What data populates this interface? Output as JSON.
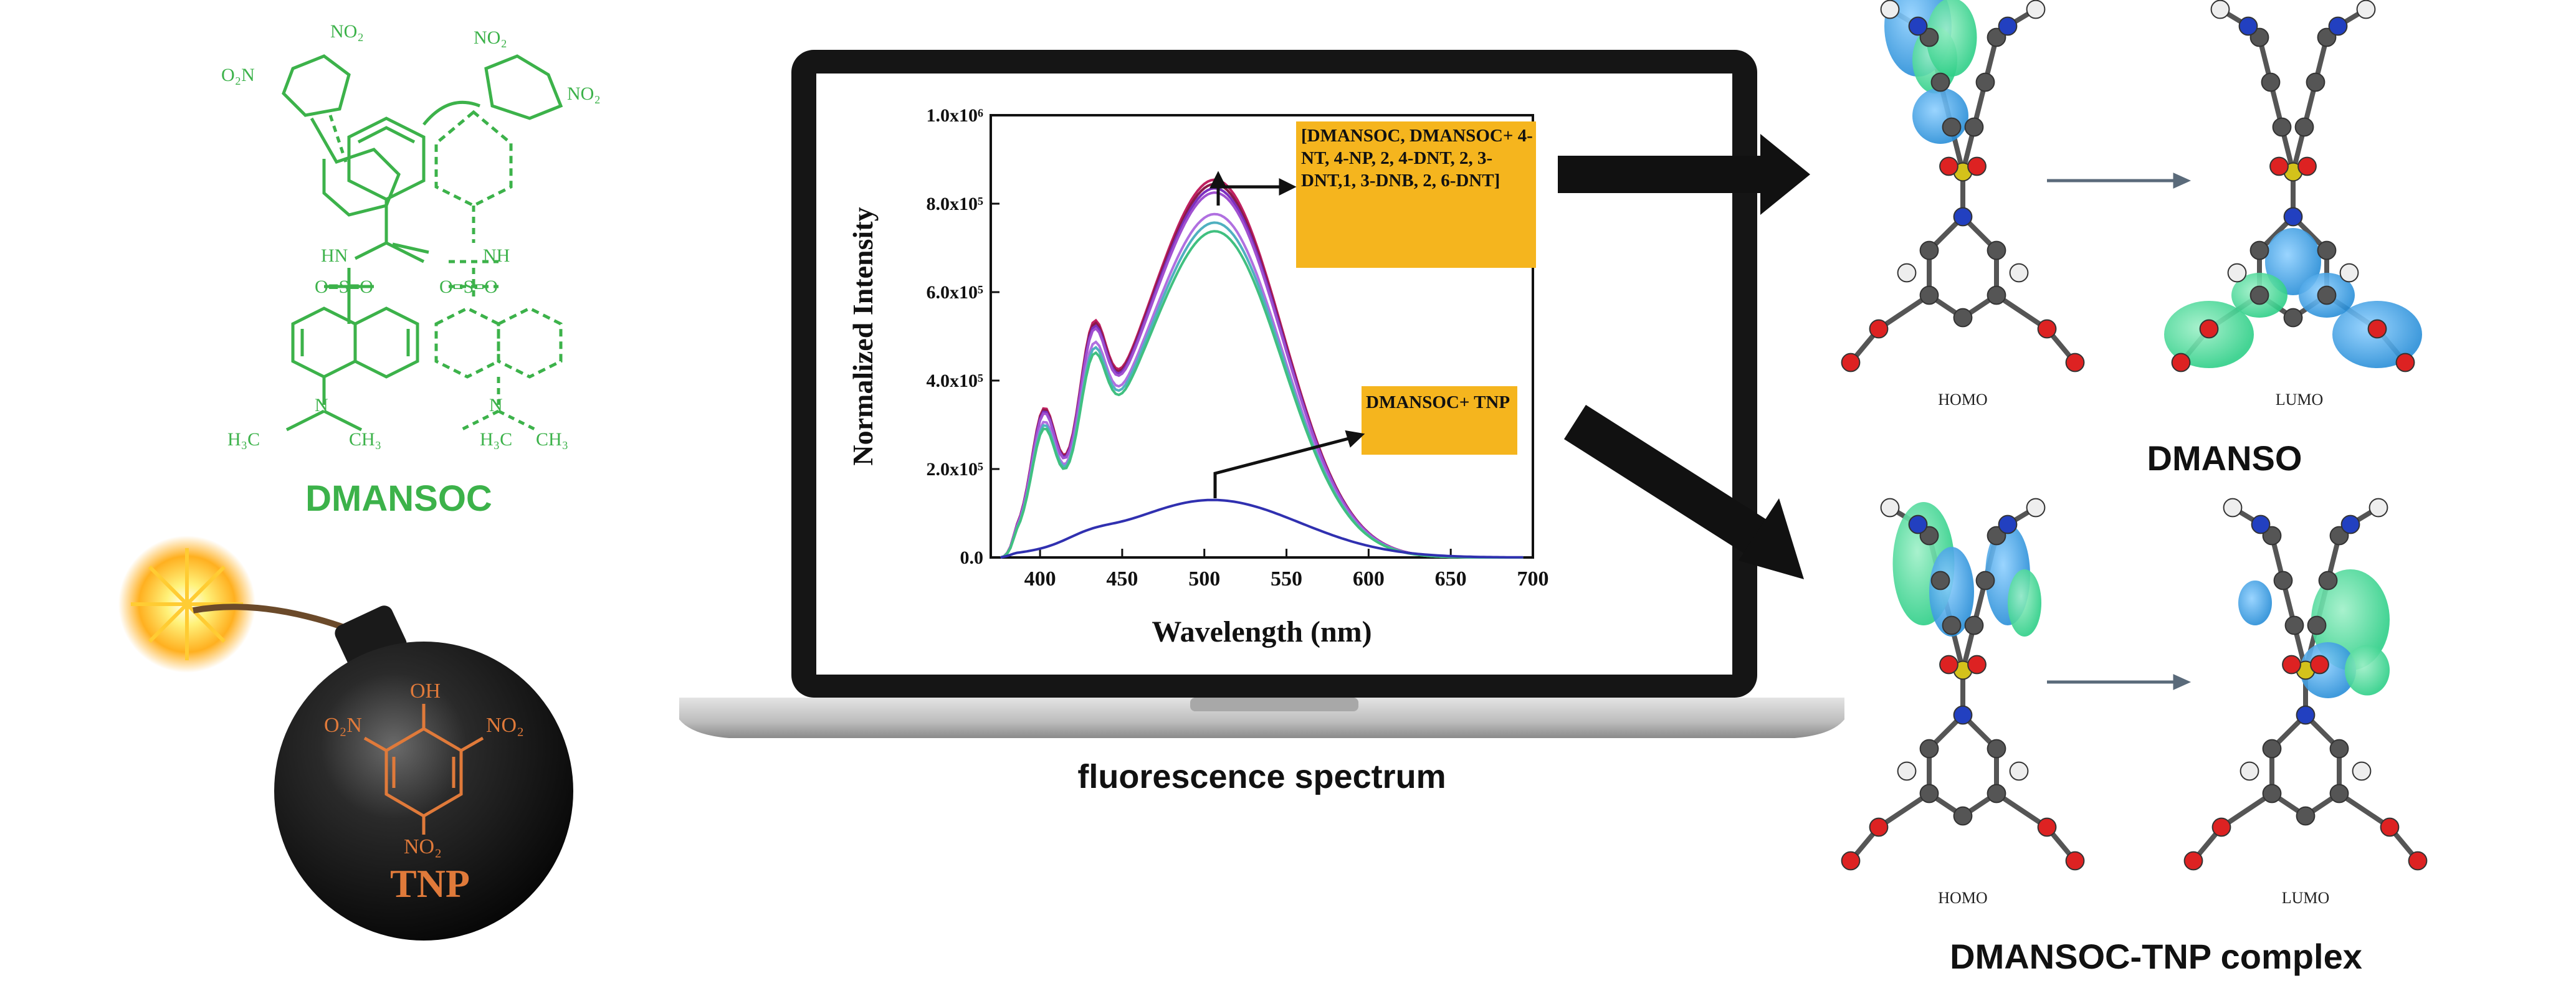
{
  "molecule": {
    "name": "DMANSOC",
    "groups": {
      "nitro_top": "NO₂",
      "nitro_left": "O₂N",
      "nh": "HN",
      "nh_right": "NH",
      "so2": "O=S=O",
      "amine": "H₃C",
      "amine_right": "CH₃",
      "n": "N"
    },
    "color": "#3cb24a"
  },
  "bomb": {
    "label": "TNP",
    "groups": {
      "oh": "OH",
      "no2_left": "O₂N",
      "no2_right": "NO₂",
      "no2_bottom": "NO₂"
    },
    "label_color": "#e07a3a"
  },
  "laptop": {
    "caption": "fluorescence spectrum"
  },
  "chart_data": {
    "type": "line",
    "title": "",
    "xlabel": "Wavelength (nm)",
    "ylabel": "Normalized Intensity",
    "xlim": [
      370,
      700
    ],
    "ylim": [
      0,
      1000000
    ],
    "x_ticks": [
      "400",
      "450",
      "500",
      "550",
      "600",
      "650",
      "700"
    ],
    "y_ticks": [
      "0.0",
      "2.0x10⁵",
      "4.0x10⁵",
      "6.0x10⁵",
      "8.0x10⁵",
      "1.0x10⁶"
    ],
    "peak_x": 510,
    "series": [
      {
        "peak": 880000,
        "color": "#c02060"
      },
      {
        "peak": 870000,
        "color": "#8b1a4a"
      },
      {
        "peak": 860000,
        "color": "#7b2fbf"
      },
      {
        "peak": 850000,
        "color": "#a050d0"
      },
      {
        "peak": 800000,
        "color": "#b070e0"
      },
      {
        "peak": 780000,
        "color": "#50b0c0"
      },
      {
        "peak": 760000,
        "color": "#40c080"
      },
      {
        "peak": 130000,
        "color": "#3030b0"
      }
    ],
    "annotations": [
      {
        "text": "[DMANSOC, DMANSOC+ 4-NT, 4-NP, 2, 4-DNT, 2, 3-DNT,1, 3-DNB, 2, 6-DNT]"
      },
      {
        "text": "DMANSOC+ TNP"
      }
    ],
    "annotation_bg": "#f5b51e"
  },
  "orbitals": {
    "top_caption": "DMANSO",
    "bottom_caption": "DMANSOC-TNP complex",
    "homo": "HOMO",
    "lumo": "LUMO"
  }
}
